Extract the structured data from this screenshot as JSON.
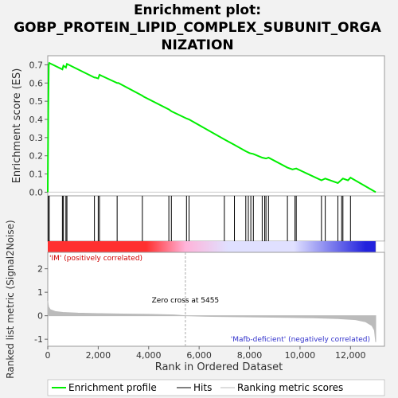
{
  "colors": {
    "es_line": "#00ee00",
    "hits": "#000000",
    "metric_fill": "#bbbbbb",
    "zero_line": "#cccccc",
    "pos_label": "#cc0000",
    "neg_label": "#3333cc",
    "heat_pos_dark": "#ff3030",
    "heat_pos_light": "#ffb3d9",
    "heat_neg_light": "#e0e0ff",
    "heat_neg_dark": "#2222dd"
  },
  "chart_data": {
    "type": "line",
    "title": "Enrichment plot: GOBP_PROTEIN_LIPID_COMPLEX_SUBUNIT_ORGANIZATION",
    "title_lines": [
      "Enrichment plot:",
      "GOBP_PROTEIN_LIPID_COMPLEX_SUBUNIT_ORGA",
      "NIZATION"
    ],
    "x_range": [
      0,
      13000
    ],
    "es_panel": {
      "ylabel": "Enrichment score (ES)",
      "ylim": [
        -0.02,
        0.75
      ],
      "yticks": [
        "0.0",
        "0.1",
        "0.2",
        "0.3",
        "0.4",
        "0.5",
        "0.6",
        "0.7"
      ],
      "ytick_values": [
        0.0,
        0.1,
        0.2,
        0.3,
        0.4,
        0.5,
        0.6,
        0.7
      ],
      "profile": [
        [
          0,
          0.0
        ],
        [
          20,
          0.46
        ],
        [
          40,
          0.7
        ],
        [
          60,
          0.71
        ],
        [
          580,
          0.675
        ],
        [
          620,
          0.695
        ],
        [
          720,
          0.685
        ],
        [
          760,
          0.705
        ],
        [
          1850,
          0.63
        ],
        [
          1880,
          0.63
        ],
        [
          2000,
          0.625
        ],
        [
          2050,
          0.645
        ],
        [
          2750,
          0.6
        ],
        [
          2800,
          0.6
        ],
        [
          3750,
          0.53
        ],
        [
          3800,
          0.525
        ],
        [
          4800,
          0.455
        ],
        [
          4900,
          0.445
        ],
        [
          5500,
          0.405
        ],
        [
          5600,
          0.4
        ],
        [
          7000,
          0.29
        ],
        [
          7400,
          0.26
        ],
        [
          7850,
          0.225
        ],
        [
          8000,
          0.215
        ],
        [
          8150,
          0.21
        ],
        [
          8500,
          0.19
        ],
        [
          8650,
          0.185
        ],
        [
          8750,
          0.19
        ],
        [
          9500,
          0.135
        ],
        [
          9700,
          0.125
        ],
        [
          9850,
          0.13
        ],
        [
          10850,
          0.065
        ],
        [
          11000,
          0.075
        ],
        [
          11500,
          0.05
        ],
        [
          11700,
          0.075
        ],
        [
          11900,
          0.065
        ],
        [
          12000,
          0.08
        ],
        [
          13000,
          0.0
        ]
      ]
    },
    "hits": [
      20,
      60,
      580,
      620,
      720,
      760,
      1850,
      2000,
      2050,
      2750,
      3750,
      4800,
      4900,
      5500,
      5600,
      7000,
      7400,
      7850,
      7950,
      8050,
      8150,
      8500,
      8600,
      8650,
      8750,
      9500,
      9800,
      9850,
      10850,
      11000,
      11500,
      11650,
      11700,
      12000
    ],
    "metric_panel": {
      "ylabel": "Ranked list metric (Signal2Noise)",
      "ylim": [
        -1.3,
        2.7
      ],
      "yticks": [
        "-1",
        "0",
        "1",
        "2"
      ],
      "ytick_values": [
        -1,
        0,
        1,
        2
      ],
      "curve": [
        [
          0,
          0.62
        ],
        [
          30,
          0.38
        ],
        [
          100,
          0.26
        ],
        [
          300,
          0.18
        ],
        [
          600,
          0.14
        ],
        [
          1200,
          0.11
        ],
        [
          2000,
          0.09
        ],
        [
          3000,
          0.075
        ],
        [
          4000,
          0.06
        ],
        [
          5000,
          0.035
        ],
        [
          5455,
          0.0
        ],
        [
          6500,
          -0.03
        ],
        [
          8000,
          -0.05
        ],
        [
          9500,
          -0.07
        ],
        [
          10500,
          -0.09
        ],
        [
          11500,
          -0.12
        ],
        [
          12200,
          -0.17
        ],
        [
          12600,
          -0.26
        ],
        [
          12850,
          -0.42
        ],
        [
          12950,
          -0.62
        ],
        [
          13000,
          -1.12
        ]
      ],
      "zero_cross_x": 5455,
      "zero_cross_label": "Zero cross at 5455",
      "pos_label": "'IM' (positively correlated)",
      "neg_label": "'Mafb-deficient' (negatively correlated)"
    },
    "xlabel": "Rank in Ordered Dataset",
    "xticks": [
      "0",
      "2,000",
      "4,000",
      "6,000",
      "8,000",
      "10,000",
      "12,000"
    ],
    "xtick_values": [
      0,
      2000,
      4000,
      6000,
      8000,
      10000,
      12000
    ],
    "legend": {
      "placement": "bottom",
      "entries": [
        "Enrichment profile",
        "Hits",
        "Ranking metric scores"
      ]
    }
  }
}
